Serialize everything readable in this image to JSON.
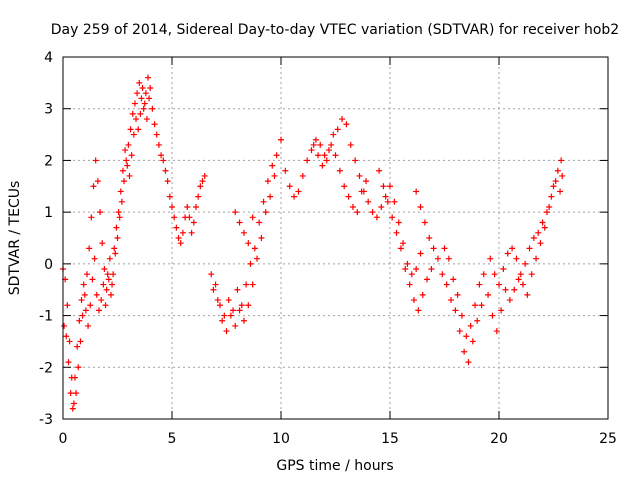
{
  "chart_data": {
    "type": "scatter",
    "title": "Day 259 of 2014, Sidereal Day-to-day VTEC variation (SDTVAR) for receiver hob2",
    "xlabel": "GPS time / hours",
    "ylabel": "SDTVAR / TECUs",
    "xlim": [
      0,
      25
    ],
    "ylim": [
      -3,
      4
    ],
    "xticks": [
      "0",
      "5",
      "10",
      "15",
      "20",
      "25"
    ],
    "yticks": [
      "-3",
      "-2",
      "-1",
      "0",
      "1",
      "2",
      "3",
      "4"
    ],
    "grid": true,
    "marker": "+",
    "color": "#ff0000",
    "series": [
      {
        "name": "SDTVAR",
        "points": [
          [
            0.0,
            -0.1
          ],
          [
            0.1,
            -0.3
          ],
          [
            0.2,
            -0.8
          ],
          [
            0.3,
            -1.5
          ],
          [
            0.4,
            -2.2
          ],
          [
            0.5,
            -2.7
          ],
          [
            0.6,
            -2.5
          ],
          [
            0.7,
            -2.0
          ],
          [
            0.8,
            -1.5
          ],
          [
            0.9,
            -1.0
          ],
          [
            1.0,
            -0.6
          ],
          [
            1.1,
            -0.2
          ],
          [
            1.2,
            0.3
          ],
          [
            1.3,
            0.9
          ],
          [
            1.4,
            1.5
          ],
          [
            1.5,
            2.0
          ],
          [
            1.6,
            1.6
          ],
          [
            1.7,
            1.0
          ],
          [
            1.8,
            0.4
          ],
          [
            1.9,
            -0.1
          ],
          [
            2.0,
            -0.5
          ],
          [
            2.1,
            -0.3
          ],
          [
            2.2,
            -0.6
          ],
          [
            2.3,
            -0.2
          ],
          [
            2.4,
            0.2
          ],
          [
            2.5,
            0.5
          ],
          [
            2.6,
            0.9
          ],
          [
            2.7,
            1.2
          ],
          [
            2.8,
            1.6
          ],
          [
            2.9,
            2.0
          ],
          [
            3.0,
            2.3
          ],
          [
            3.1,
            2.6
          ],
          [
            3.2,
            2.9
          ],
          [
            3.3,
            3.1
          ],
          [
            3.4,
            3.3
          ],
          [
            3.5,
            3.5
          ],
          [
            3.6,
            3.2
          ],
          [
            3.7,
            3.0
          ],
          [
            3.8,
            3.3
          ],
          [
            3.9,
            3.6
          ],
          [
            4.0,
            3.4
          ],
          [
            4.1,
            3.0
          ],
          [
            4.2,
            2.7
          ],
          [
            4.3,
            2.5
          ],
          [
            4.4,
            2.3
          ],
          [
            4.5,
            2.1
          ],
          [
            4.6,
            2.0
          ],
          [
            4.7,
            1.8
          ],
          [
            4.8,
            1.6
          ],
          [
            4.9,
            1.3
          ],
          [
            5.0,
            1.1
          ],
          [
            5.1,
            0.9
          ],
          [
            5.2,
            0.7
          ],
          [
            5.3,
            0.5
          ],
          [
            5.4,
            0.4
          ],
          [
            5.5,
            0.6
          ],
          [
            5.6,
            0.9
          ],
          [
            5.7,
            1.1
          ],
          [
            5.8,
            0.9
          ],
          [
            5.9,
            0.6
          ],
          [
            6.0,
            0.8
          ],
          [
            6.1,
            1.1
          ],
          [
            6.2,
            1.3
          ],
          [
            6.3,
            1.5
          ],
          [
            6.4,
            1.6
          ],
          [
            6.5,
            1.7
          ],
          [
            0.05,
            -1.2
          ],
          [
            0.15,
            -1.4
          ],
          [
            0.25,
            -1.9
          ],
          [
            0.35,
            -2.5
          ],
          [
            0.45,
            -2.8
          ],
          [
            0.55,
            -2.2
          ],
          [
            0.65,
            -1.6
          ],
          [
            0.75,
            -1.1
          ],
          [
            0.85,
            -0.7
          ],
          [
            0.95,
            -0.4
          ],
          [
            1.05,
            -0.9
          ],
          [
            1.15,
            -1.2
          ],
          [
            1.25,
            -0.8
          ],
          [
            1.35,
            -0.3
          ],
          [
            1.45,
            0.1
          ],
          [
            1.55,
            -0.6
          ],
          [
            1.65,
            -0.9
          ],
          [
            1.75,
            -0.7
          ],
          [
            1.85,
            -0.4
          ],
          [
            1.95,
            -0.8
          ],
          [
            2.05,
            -0.2
          ],
          [
            2.15,
            0.1
          ],
          [
            2.25,
            -0.4
          ],
          [
            2.35,
            0.3
          ],
          [
            2.45,
            0.7
          ],
          [
            2.55,
            1.0
          ],
          [
            2.65,
            1.4
          ],
          [
            2.75,
            1.8
          ],
          [
            2.85,
            2.2
          ],
          [
            2.95,
            1.9
          ],
          [
            3.05,
            1.7
          ],
          [
            3.15,
            2.1
          ],
          [
            3.25,
            2.5
          ],
          [
            3.35,
            2.8
          ],
          [
            3.45,
            2.6
          ],
          [
            3.55,
            2.9
          ],
          [
            3.65,
            3.4
          ],
          [
            3.75,
            3.1
          ],
          [
            3.85,
            2.8
          ],
          [
            3.95,
            3.2
          ],
          [
            6.8,
            -0.2
          ],
          [
            7.0,
            -0.4
          ],
          [
            7.2,
            -0.8
          ],
          [
            7.4,
            -1.0
          ],
          [
            7.6,
            -0.7
          ],
          [
            7.8,
            -0.9
          ],
          [
            8.0,
            -0.5
          ],
          [
            8.2,
            -0.8
          ],
          [
            8.4,
            -0.4
          ],
          [
            8.6,
            0.0
          ],
          [
            8.8,
            0.3
          ],
          [
            9.0,
            0.8
          ],
          [
            9.2,
            1.2
          ],
          [
            9.4,
            1.6
          ],
          [
            9.6,
            1.9
          ],
          [
            9.8,
            2.1
          ],
          [
            10.0,
            2.4
          ],
          [
            6.9,
            -0.5
          ],
          [
            7.1,
            -0.7
          ],
          [
            7.3,
            -1.1
          ],
          [
            7.5,
            -1.3
          ],
          [
            7.7,
            -1.0
          ],
          [
            7.9,
            -1.2
          ],
          [
            8.1,
            -0.9
          ],
          [
            8.3,
            -1.1
          ],
          [
            8.5,
            -0.8
          ],
          [
            8.7,
            -0.4
          ],
          [
            8.9,
            0.1
          ],
          [
            9.1,
            0.5
          ],
          [
            9.3,
            1.0
          ],
          [
            9.5,
            1.3
          ],
          [
            9.7,
            1.7
          ],
          [
            7.9,
            1.0
          ],
          [
            8.1,
            0.8
          ],
          [
            8.3,
            0.6
          ],
          [
            8.5,
            0.4
          ],
          [
            8.7,
            0.9
          ],
          [
            10.2,
            1.8
          ],
          [
            10.4,
            1.5
          ],
          [
            10.6,
            1.3
          ],
          [
            10.8,
            1.4
          ],
          [
            11.0,
            1.7
          ],
          [
            11.2,
            2.0
          ],
          [
            11.4,
            2.2
          ],
          [
            11.6,
            2.4
          ],
          [
            11.8,
            2.3
          ],
          [
            12.0,
            2.1
          ],
          [
            12.2,
            2.2
          ],
          [
            12.4,
            2.5
          ],
          [
            12.6,
            2.6
          ],
          [
            12.8,
            2.8
          ],
          [
            13.0,
            2.7
          ],
          [
            13.2,
            2.3
          ],
          [
            13.4,
            2.0
          ],
          [
            13.6,
            1.7
          ],
          [
            13.8,
            1.4
          ],
          [
            14.0,
            1.2
          ],
          [
            14.2,
            1.0
          ],
          [
            14.4,
            0.9
          ],
          [
            14.6,
            1.1
          ],
          [
            14.8,
            1.3
          ],
          [
            15.0,
            1.5
          ],
          [
            15.2,
            1.2
          ],
          [
            15.4,
            0.8
          ],
          [
            15.6,
            0.4
          ],
          [
            15.8,
            0.0
          ],
          [
            16.0,
            -0.2
          ],
          [
            16.2,
            -0.1
          ],
          [
            16.4,
            0.2
          ],
          [
            11.5,
            2.3
          ],
          [
            11.7,
            2.1
          ],
          [
            11.9,
            1.9
          ],
          [
            12.1,
            2.0
          ],
          [
            12.3,
            2.3
          ],
          [
            12.5,
            2.1
          ],
          [
            12.7,
            1.8
          ],
          [
            12.9,
            1.5
          ],
          [
            13.1,
            1.3
          ],
          [
            13.3,
            1.1
          ],
          [
            13.5,
            1.0
          ],
          [
            13.7,
            1.4
          ],
          [
            13.9,
            1.6
          ],
          [
            14.5,
            1.8
          ],
          [
            14.7,
            1.5
          ],
          [
            14.9,
            1.2
          ],
          [
            15.1,
            0.9
          ],
          [
            15.3,
            0.6
          ],
          [
            15.5,
            0.3
          ],
          [
            15.7,
            -0.1
          ],
          [
            15.9,
            -0.4
          ],
          [
            16.1,
            -0.7
          ],
          [
            16.3,
            -0.9
          ],
          [
            16.5,
            -0.6
          ],
          [
            16.7,
            -0.3
          ],
          [
            16.9,
            -0.1
          ],
          [
            16.2,
            1.4
          ],
          [
            16.4,
            1.1
          ],
          [
            16.6,
            0.8
          ],
          [
            16.8,
            0.5
          ],
          [
            17.0,
            0.3
          ],
          [
            17.2,
            0.1
          ],
          [
            17.4,
            -0.2
          ],
          [
            17.6,
            -0.4
          ],
          [
            17.8,
            -0.7
          ],
          [
            18.0,
            -0.9
          ],
          [
            18.2,
            -1.3
          ],
          [
            18.4,
            -1.7
          ],
          [
            18.6,
            -1.9
          ],
          [
            18.8,
            -1.5
          ],
          [
            19.0,
            -1.1
          ],
          [
            19.2,
            -0.8
          ],
          [
            17.5,
            0.3
          ],
          [
            17.7,
            0.1
          ],
          [
            17.9,
            -0.3
          ],
          [
            18.1,
            -0.6
          ],
          [
            18.3,
            -1.0
          ],
          [
            18.5,
            -1.4
          ],
          [
            18.7,
            -1.2
          ],
          [
            18.9,
            -0.8
          ],
          [
            19.1,
            -0.4
          ],
          [
            19.3,
            -0.2
          ],
          [
            19.5,
            -0.6
          ],
          [
            19.7,
            -1.0
          ],
          [
            19.9,
            -1.3
          ],
          [
            20.1,
            -0.9
          ],
          [
            20.3,
            -0.5
          ],
          [
            20.5,
            -0.7
          ],
          [
            20.7,
            -0.5
          ],
          [
            20.9,
            -0.3
          ],
          [
            21.1,
            -0.4
          ],
          [
            21.3,
            -0.6
          ],
          [
            21.5,
            -0.2
          ],
          [
            21.7,
            0.1
          ],
          [
            21.9,
            0.4
          ],
          [
            22.1,
            0.7
          ],
          [
            22.3,
            1.1
          ],
          [
            22.5,
            1.5
          ],
          [
            22.7,
            1.8
          ],
          [
            22.85,
            2.0
          ],
          [
            19.6,
            0.1
          ],
          [
            19.8,
            -0.2
          ],
          [
            20.0,
            -0.4
          ],
          [
            20.2,
            -0.1
          ],
          [
            20.4,
            0.2
          ],
          [
            20.6,
            0.3
          ],
          [
            20.8,
            0.1
          ],
          [
            21.0,
            -0.2
          ],
          [
            21.2,
            0.0
          ],
          [
            21.4,
            0.3
          ],
          [
            21.6,
            0.5
          ],
          [
            21.8,
            0.6
          ],
          [
            22.0,
            0.8
          ],
          [
            22.2,
            1.0
          ],
          [
            22.4,
            1.3
          ],
          [
            22.6,
            1.6
          ],
          [
            22.8,
            1.4
          ],
          [
            22.9,
            1.7
          ]
        ]
      }
    ]
  }
}
